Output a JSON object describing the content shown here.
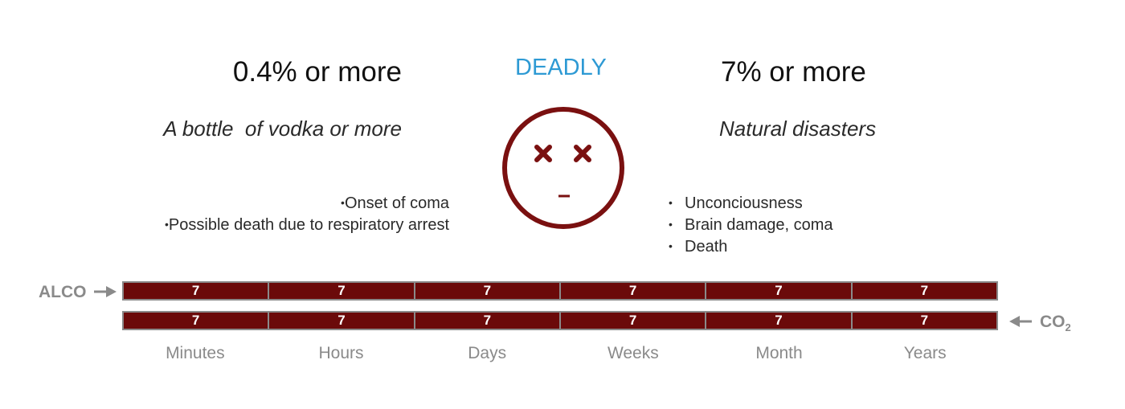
{
  "header": {
    "left_threshold": "0.4% or more",
    "center_label": "DEADLY",
    "right_threshold": "7% or more"
  },
  "subtitles": {
    "left": "A bottle  of vodka or more",
    "right": "Natural disasters"
  },
  "left_effects": [
    "Onset of coma",
    "Possible death due to respiratory arrest"
  ],
  "right_effects": [
    "Unconciousness",
    "Brain damage, coma",
    "Death"
  ],
  "rows": {
    "alco": {
      "label": "ALCO",
      "values": [
        "7",
        "7",
        "7",
        "7",
        "7",
        "7"
      ]
    },
    "co2": {
      "label": "CO",
      "subscript": "2",
      "values": [
        "7",
        "7",
        "7",
        "7",
        "7",
        "7"
      ]
    }
  },
  "time_scale": [
    "Minutes",
    "Hours",
    "Days",
    "Weeks",
    "Month",
    "Years"
  ],
  "icons": {
    "face": "dead-face-icon",
    "alco_arrow": "arrow-right-icon",
    "co2_arrow": "arrow-left-icon"
  },
  "colors": {
    "accent": "#2e9ad4",
    "bar_fill": "#6b0a0a",
    "face": "#7a1010",
    "muted": "#8a8a8a"
  }
}
